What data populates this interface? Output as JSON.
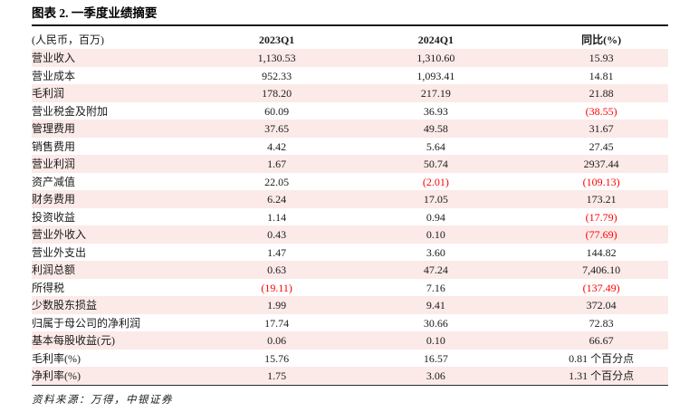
{
  "title": "图表 2. 一季度业绩摘要",
  "table": {
    "columns": [
      "(人民币，百万)",
      "2023Q1",
      "2024Q1",
      "同比(%)"
    ],
    "rows": [
      [
        "营业收入",
        "1,130.53",
        "1,310.60",
        "15.93"
      ],
      [
        "营业成本",
        "952.33",
        "1,093.41",
        "14.81"
      ],
      [
        "毛利润",
        "178.20",
        "217.19",
        "21.88"
      ],
      [
        "营业税金及附加",
        "60.09",
        "36.93",
        "(38.55)"
      ],
      [
        "管理费用",
        "37.65",
        "49.58",
        "31.67"
      ],
      [
        "销售费用",
        "4.42",
        "5.64",
        "27.45"
      ],
      [
        "营业利润",
        "1.67",
        "50.74",
        "2937.44"
      ],
      [
        "资产减值",
        "22.05",
        "(2.01)",
        "(109.13)"
      ],
      [
        "财务费用",
        "6.24",
        "17.05",
        "173.21"
      ],
      [
        "投资收益",
        "1.14",
        "0.94",
        "(17.79)"
      ],
      [
        "营业外收入",
        "0.43",
        "0.10",
        "(77.69)"
      ],
      [
        "营业外支出",
        "1.47",
        "3.60",
        "144.82"
      ],
      [
        "利润总额",
        "0.63",
        "47.24",
        "7,406.10"
      ],
      [
        "所得税",
        "(19.11)",
        "7.16",
        "(137.49)"
      ],
      [
        "少数股东损益",
        "1.99",
        "9.41",
        "372.04"
      ],
      [
        "归属于母公司的净利润",
        "17.74",
        "30.66",
        "72.83"
      ],
      [
        "基本每股收益(元)",
        "0.06",
        "0.10",
        "66.67"
      ],
      [
        "毛利率(%)",
        "15.76",
        "16.57",
        "0.81 个百分点"
      ],
      [
        "净利率(%)",
        "1.75",
        "3.06",
        "1.31 个百分点"
      ]
    ]
  },
  "source": "资料来源：万得，中银证券",
  "colors": {
    "row_stripe": "#fbeae8",
    "negative_red": "#ff0000",
    "divider_black": "#1a1a1a"
  }
}
